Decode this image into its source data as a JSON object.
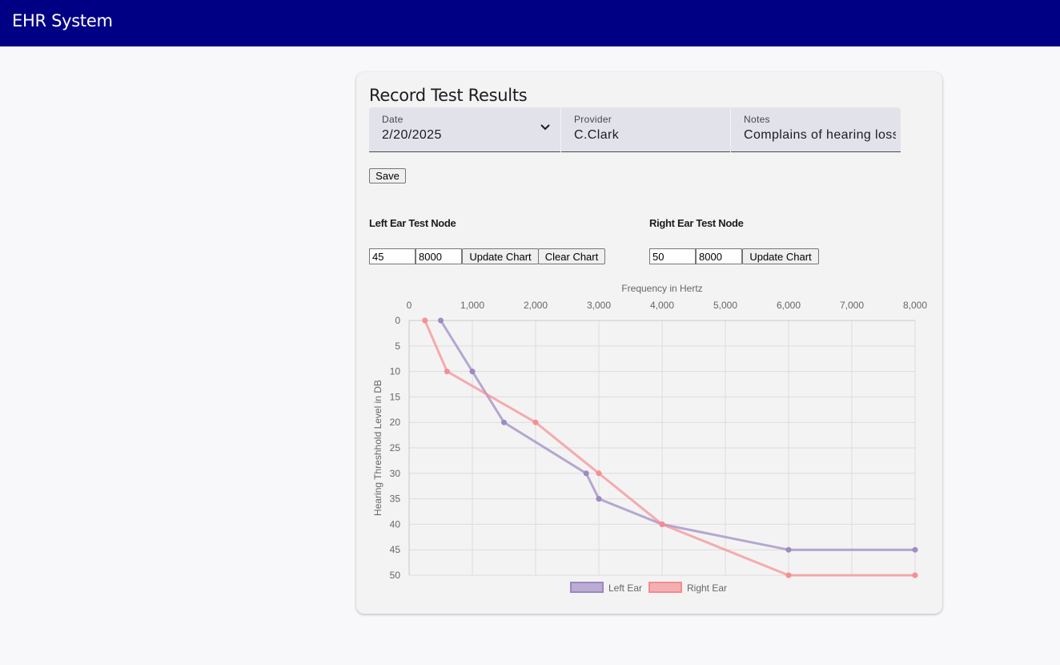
{
  "app": {
    "title": "EHR System"
  },
  "form": {
    "title": "Record Test Results",
    "date": {
      "label": "Date",
      "value": "2/20/2025"
    },
    "provider": {
      "label": "Provider",
      "value": "C.Clark"
    },
    "notes": {
      "label": "Notes",
      "value": "Complains of hearing loss"
    },
    "save_label": "Save"
  },
  "left_ear": {
    "heading": "Left Ear Test Node",
    "db_value": "45",
    "freq_value": "8000",
    "update_label": "Update Chart",
    "clear_label": "Clear Chart"
  },
  "right_ear": {
    "heading": "Right Ear Test Node",
    "db_value": "50",
    "freq_value": "8000",
    "update_label": "Update Chart"
  },
  "chart_data": {
    "type": "line",
    "xlabel": "Frequency in Hertz",
    "ylabel": "Hearing Threshhold Level in DB",
    "xlim": [
      0,
      8000
    ],
    "ylim": [
      0,
      50
    ],
    "y_reversed": true,
    "x_axis_position": "top",
    "x_ticks": [
      "0",
      "1,000",
      "2,000",
      "3,000",
      "4,000",
      "5,000",
      "6,000",
      "7,000",
      "8,000"
    ],
    "y_ticks": [
      "0",
      "5",
      "10",
      "15",
      "20",
      "25",
      "30",
      "35",
      "40",
      "45",
      "50"
    ],
    "grid": true,
    "legend_position": "bottom",
    "series": [
      {
        "name": "Left Ear",
        "color": "#9b86c0",
        "points": [
          [
            500,
            0
          ],
          [
            1000,
            10
          ],
          [
            1500,
            20
          ],
          [
            2800,
            30
          ],
          [
            3000,
            35
          ],
          [
            4000,
            40
          ],
          [
            6000,
            45
          ],
          [
            8000,
            45
          ]
        ]
      },
      {
        "name": "Right Ear",
        "color": "#f58b8f",
        "points": [
          [
            250,
            0
          ],
          [
            600,
            10
          ],
          [
            2000,
            20
          ],
          [
            3000,
            30
          ],
          [
            4000,
            40
          ],
          [
            6000,
            50
          ],
          [
            8000,
            50
          ]
        ]
      }
    ]
  }
}
